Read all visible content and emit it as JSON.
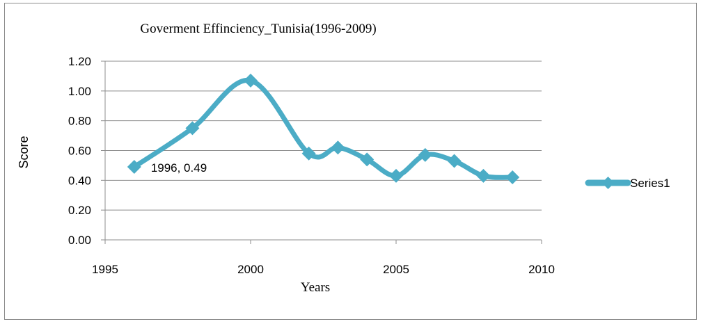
{
  "chart_data": {
    "type": "line",
    "title": "Goverment Effinciency_Tunisia(1996-2009)",
    "xlabel": "Years",
    "ylabel": "Score",
    "xlim": [
      1995,
      2010
    ],
    "ylim": [
      0,
      1.2
    ],
    "x_ticks": [
      "1995",
      "2000",
      "2005",
      "2010"
    ],
    "y_ticks": [
      "0.00",
      "0.20",
      "0.40",
      "0.60",
      "0.80",
      "1.00",
      "1.20"
    ],
    "grid": "horizontal",
    "smooth": true,
    "legend_position": "right",
    "series": [
      {
        "name": "Series1",
        "color": "#4bacc6",
        "x": [
          1996,
          1998,
          2000,
          2002,
          2003,
          2004,
          2005,
          2006,
          2007,
          2008,
          2009
        ],
        "y": [
          0.49,
          0.75,
          1.07,
          0.58,
          0.62,
          0.54,
          0.43,
          0.57,
          0.53,
          0.43,
          0.42
        ]
      }
    ],
    "data_labels": [
      {
        "series": 0,
        "point": 0,
        "text": "1996, 0.49"
      }
    ]
  }
}
